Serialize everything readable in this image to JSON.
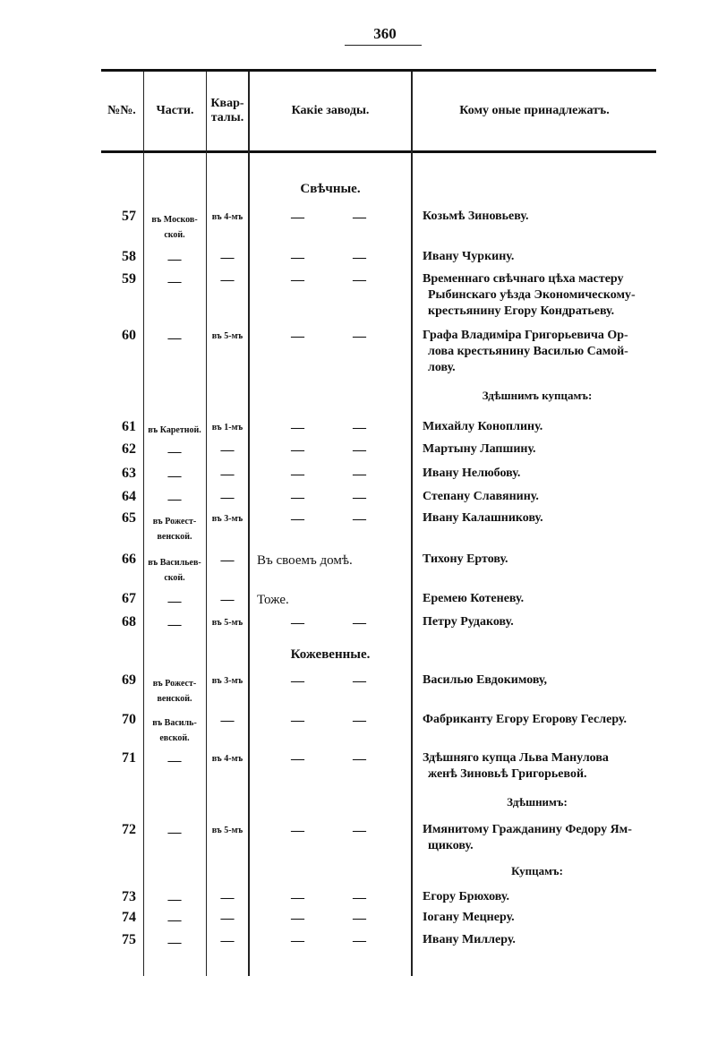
{
  "page_number": "360",
  "header": {
    "number": "№№.",
    "parts": "Части.",
    "quarters": "Квар-\nталы.",
    "works": "Какіе заводы.",
    "owners": "Кому оные принадлежатъ."
  },
  "blocks": [
    {
      "type": "section",
      "text": "Свѣчные."
    },
    {
      "type": "row",
      "num": "57",
      "part": [
        "въ Москов-",
        "ской."
      ],
      "quarter": "въ 4-мъ",
      "works": [
        "—",
        "—"
      ],
      "owner": [
        "Козьмѣ Зиновьеву."
      ]
    },
    {
      "type": "row",
      "num": "58",
      "part": [
        "—"
      ],
      "quarter": "—",
      "works": [
        "—",
        "—"
      ],
      "owner": [
        "Ивану Чуркину."
      ]
    },
    {
      "type": "row",
      "num": "59",
      "part": [
        "—"
      ],
      "quarter": "—",
      "works": [
        "—",
        "—"
      ],
      "owner": [
        "Временнаго свѣчнаго цѣха мастеру",
        "Рыбинскаго уѣзда Экономическому-",
        "крестьянину Егору Кондратьеву."
      ]
    },
    {
      "type": "row",
      "num": "60",
      "part": [
        "—"
      ],
      "quarter": "въ 5-мъ",
      "works": [
        "—",
        "—"
      ],
      "owner": [
        "Графа Владиміра Григорьевича Ор-",
        "лова крестьянину Василью Самой-",
        "лову."
      ]
    },
    {
      "type": "subhead",
      "text": "Здѣшнимъ купцамъ:"
    },
    {
      "type": "row",
      "num": "61",
      "part": [
        "въ Каретной."
      ],
      "quarter": "въ 1-мъ",
      "works": [
        "—",
        "—"
      ],
      "owner": [
        "Михайлу Коноплину."
      ]
    },
    {
      "type": "row",
      "num": "62",
      "part": [
        "—"
      ],
      "quarter": "—",
      "works": [
        "—",
        "—"
      ],
      "owner": [
        "Мартыну Лапшину."
      ]
    },
    {
      "type": "row",
      "num": "63",
      "part": [
        "—"
      ],
      "quarter": "—",
      "works": [
        "—",
        "—"
      ],
      "owner": [
        "Ивану Нелюбову."
      ]
    },
    {
      "type": "row",
      "num": "64",
      "part": [
        "—"
      ],
      "quarter": "—",
      "works": [
        "—",
        "—"
      ],
      "owner": [
        "Степану Славянину."
      ]
    },
    {
      "type": "row",
      "num": "65",
      "part": [
        "въ Рожест-",
        "венской."
      ],
      "quarter": "въ 3-мъ",
      "works": [
        "—",
        "—"
      ],
      "owner": [
        "Ивану Калашникову."
      ]
    },
    {
      "type": "row",
      "num": "66",
      "part": [
        "въ Васильев-",
        "ской."
      ],
      "quarter": "—",
      "works": [
        "Въ своемъ домѣ."
      ],
      "owner": [
        "Тихону Ертову."
      ]
    },
    {
      "type": "row",
      "num": "67",
      "part": [
        "—"
      ],
      "quarter": "—",
      "works": [
        "Тоже."
      ],
      "owner": [
        "Еремею Котеневу."
      ]
    },
    {
      "type": "row",
      "num": "68",
      "part": [
        "—"
      ],
      "quarter": "въ 5-мъ",
      "works": [
        "—",
        "—"
      ],
      "owner": [
        "Петру Рудакову."
      ]
    },
    {
      "type": "section",
      "text": "Кожевенные."
    },
    {
      "type": "row",
      "num": "69",
      "part": [
        "въ Рожест-",
        "венской."
      ],
      "quarter": "въ 3-мъ",
      "works": [
        "—",
        "—"
      ],
      "owner": [
        "Василью Евдокимову,"
      ]
    },
    {
      "type": "row",
      "num": "70",
      "part": [
        "въ Василь-",
        "евской."
      ],
      "quarter": "—",
      "works": [
        "—",
        "—"
      ],
      "owner": [
        "Фабриканту Егору Егорову Геслеру."
      ]
    },
    {
      "type": "row",
      "num": "71",
      "part": [
        "—"
      ],
      "quarter": "въ 4-мъ",
      "works": [
        "—",
        "—"
      ],
      "owner": [
        "Здѣшняго купца Льва Манулова",
        "женѣ Зиновьѣ Григорьевой."
      ]
    },
    {
      "type": "subhead",
      "text": "Здѣшнимъ:"
    },
    {
      "type": "row",
      "num": "72",
      "part": [
        "—"
      ],
      "quarter": "въ 5-мъ",
      "works": [
        "—",
        "—"
      ],
      "owner": [
        "Имянитому Гражданину Федору Ям-",
        "щикову."
      ]
    },
    {
      "type": "subhead",
      "text": "Купцамъ:"
    },
    {
      "type": "row",
      "num": "73",
      "part": [
        "—"
      ],
      "quarter": "—",
      "works": [
        "—",
        "—"
      ],
      "owner": [
        "Егору Брюхову."
      ]
    },
    {
      "type": "row",
      "num": "74",
      "part": [
        "—"
      ],
      "quarter": "—",
      "works": [
        "—",
        "—"
      ],
      "owner": [
        "Іогану Мецнеру."
      ]
    },
    {
      "type": "row",
      "num": "75",
      "part": [
        "—"
      ],
      "quarter": "—",
      "works": [
        "—",
        "—"
      ],
      "owner": [
        "Ивану Миллеру."
      ]
    }
  ]
}
